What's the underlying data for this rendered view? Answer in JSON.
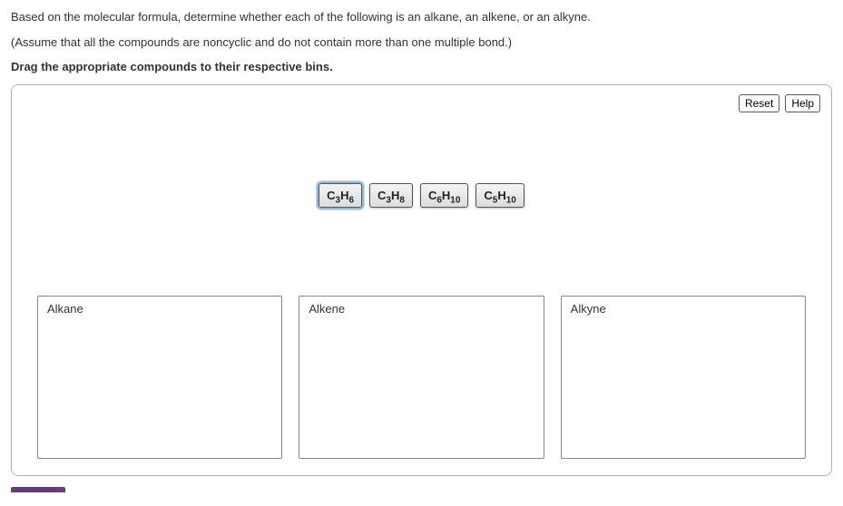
{
  "question": {
    "line1": "Based on the molecular formula, determine whether each of the following is an alkane, an alkene, or an alkyne.",
    "line2": "(Assume that all the compounds are noncyclic and do not contain more than one multiple bond.)",
    "instruction": "Drag the appropriate compounds to their respective bins."
  },
  "buttons": {
    "reset": "Reset",
    "help": "Help"
  },
  "compounds": [
    {
      "c": "3",
      "h": "6",
      "selected": true
    },
    {
      "c": "3",
      "h": "8",
      "selected": false
    },
    {
      "c": "6",
      "h": "10",
      "selected": false
    },
    {
      "c": "5",
      "h": "10",
      "selected": false
    }
  ],
  "bins": [
    {
      "label": "Alkane"
    },
    {
      "label": "Alkene"
    },
    {
      "label": "Alkyne"
    }
  ],
  "colors": {
    "panel_border": "#b0b0b0",
    "chip_border": "#555555",
    "chip_bg_top": "#f4f4f4",
    "chip_bg_bottom": "#dcdcdc",
    "bin_border": "#888888",
    "text": "#333333",
    "accent": "#6b3a7a",
    "selected_outline": "#8fb8e0"
  }
}
